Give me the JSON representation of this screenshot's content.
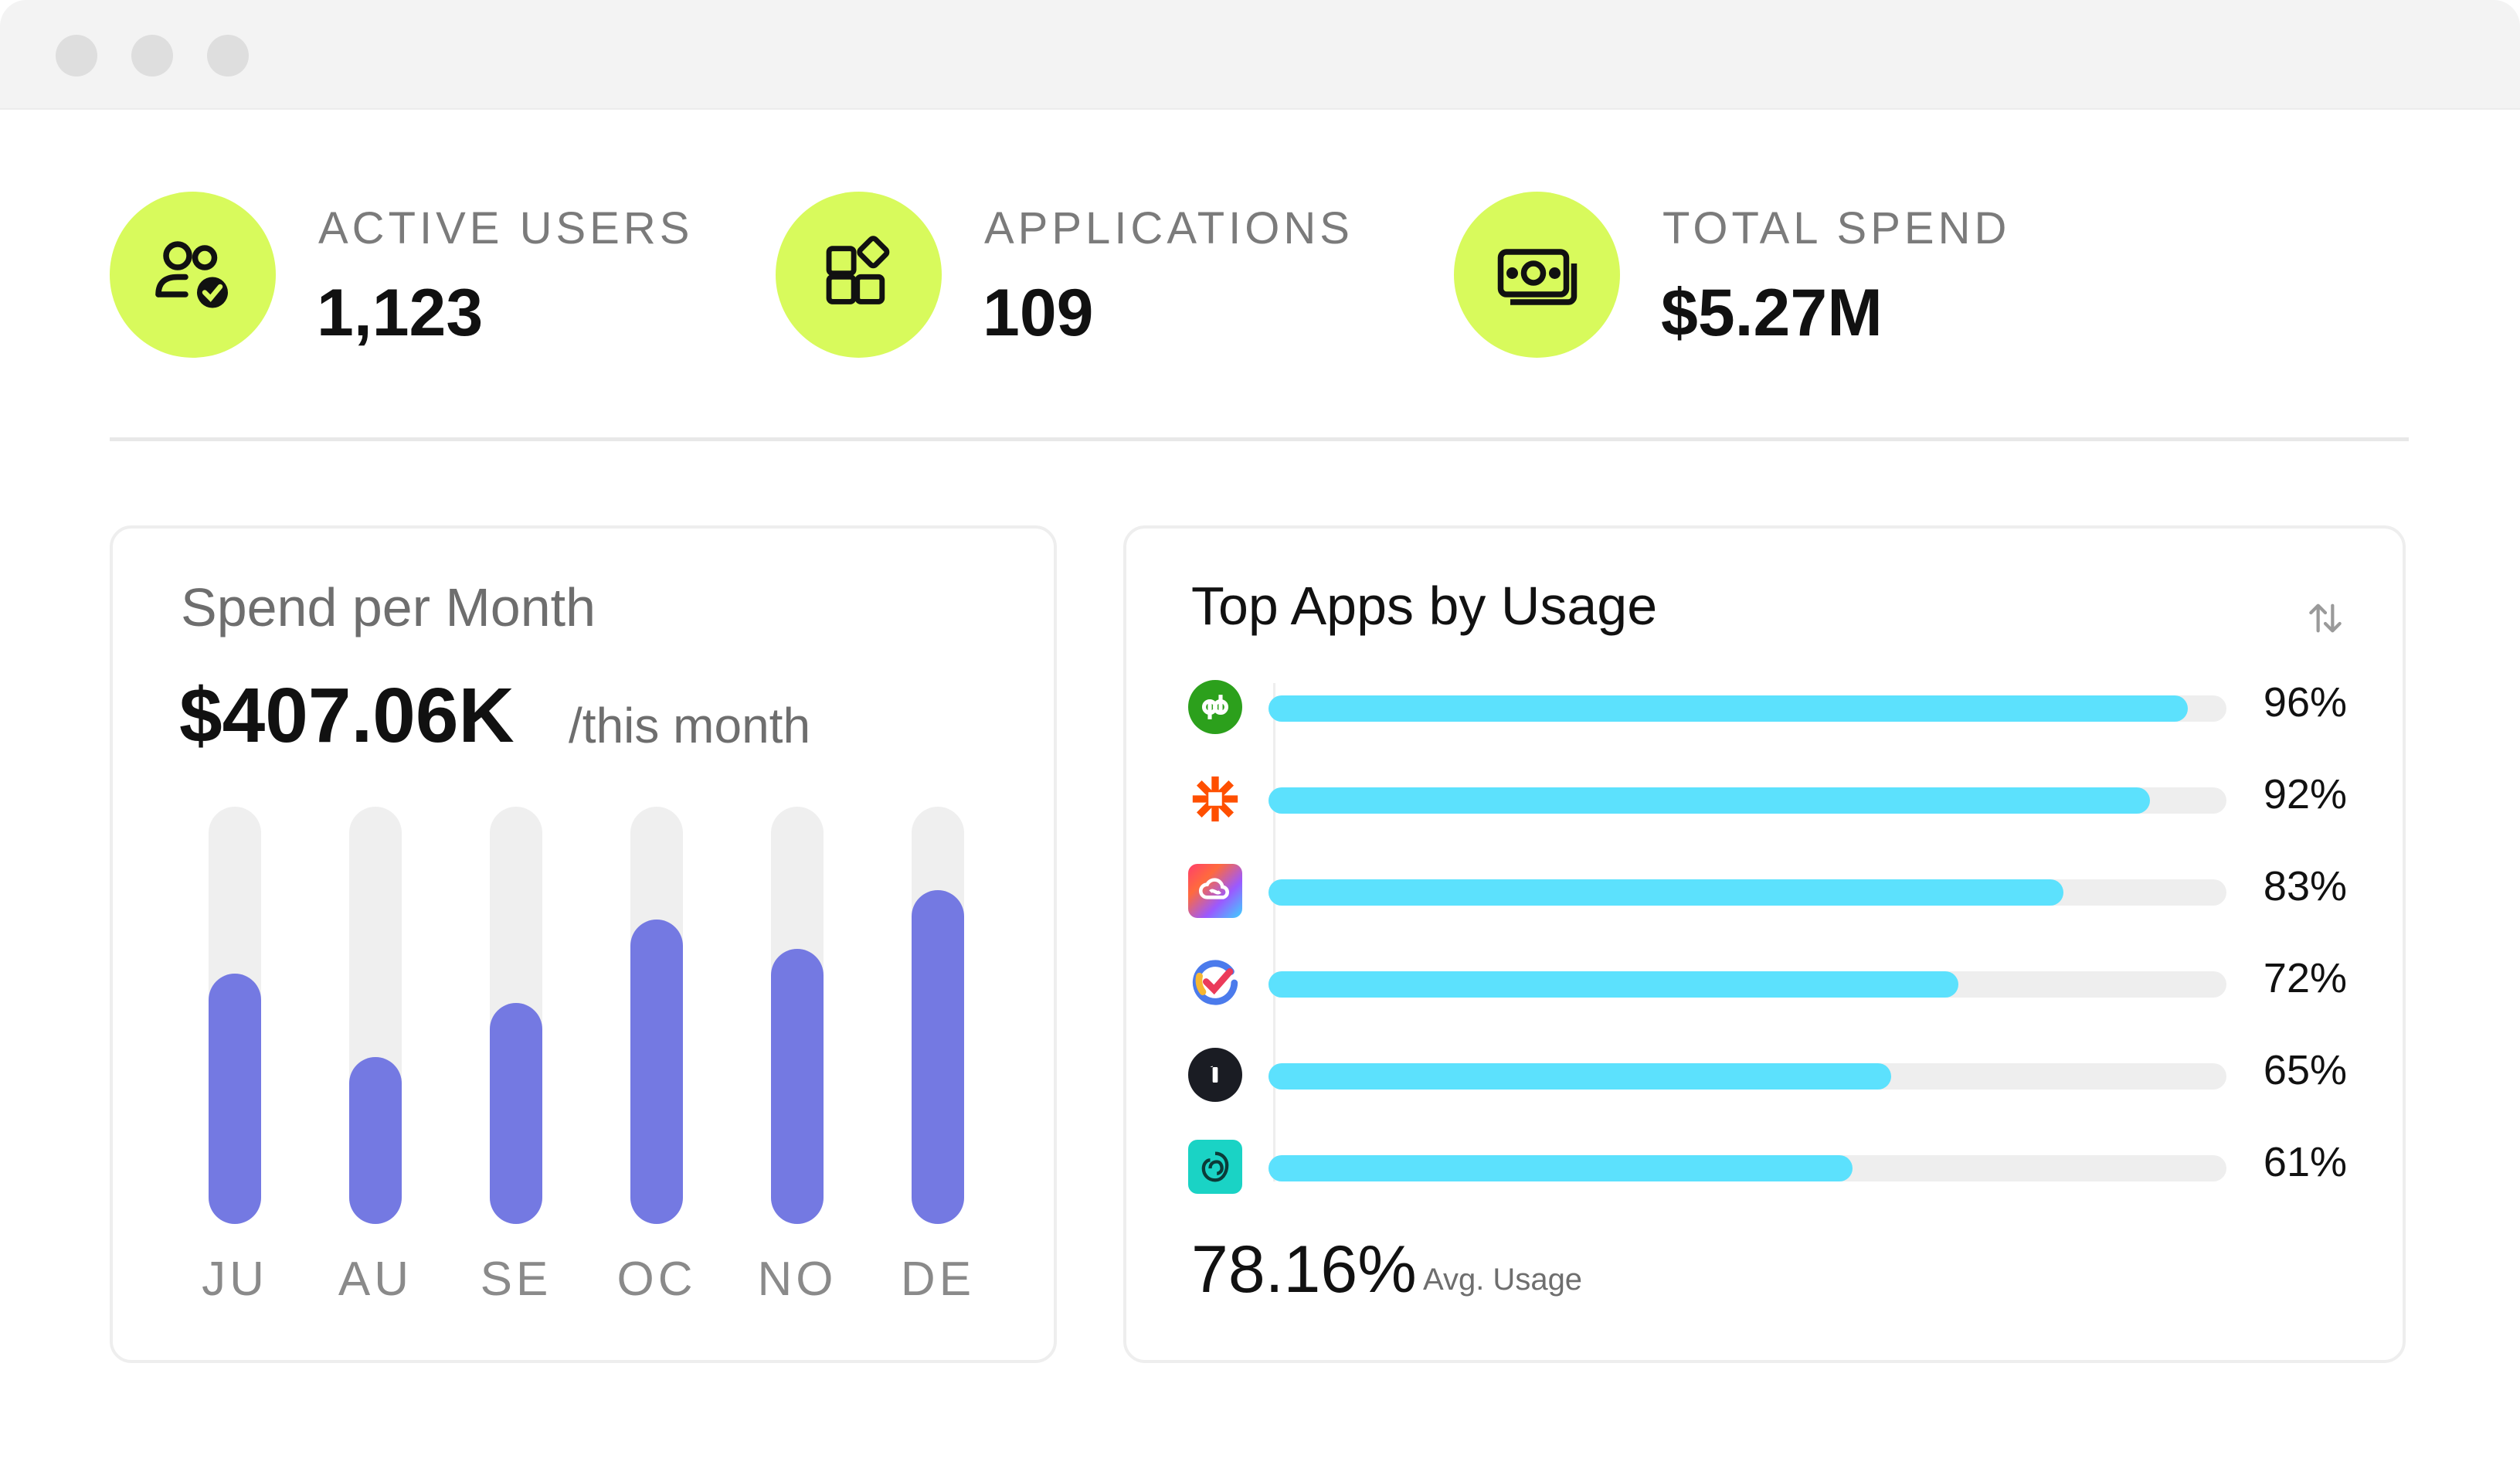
{
  "colors": {
    "accent_lime": "#d8fa5c",
    "bar_purple": "#7479e2",
    "usage_cyan": "#5ce1fd",
    "track_gray": "#efefef"
  },
  "stats": [
    {
      "label": "ACTIVE USERS",
      "value": "1,123",
      "icon": "users-check-icon"
    },
    {
      "label": "APPLICATIONS",
      "value": "109",
      "icon": "apps-grid-icon"
    },
    {
      "label": "TOTAL SPEND",
      "value": "$5.27M",
      "icon": "money-icon"
    }
  ],
  "spend_card": {
    "title": "Spend per Month",
    "value": "$407.06K",
    "suffix": "/this month"
  },
  "chart_data": {
    "type": "bar",
    "title": "Spend per Month",
    "categories": [
      "JU",
      "AU",
      "SE",
      "OC",
      "NO",
      "DE"
    ],
    "values": [
      60,
      40,
      53,
      73,
      66,
      80
    ],
    "ylim": [
      0,
      100
    ],
    "xlabel": "",
    "ylabel": "",
    "grid": false
  },
  "apps_card": {
    "title": "Top Apps by Usage",
    "sort_icon": "sort-arrows-icon",
    "apps": [
      {
        "icon": "quickbooks-logo-icon",
        "percent": "96%",
        "usage": 96
      },
      {
        "icon": "zapier-logo-icon",
        "percent": "92%",
        "usage": 92
      },
      {
        "icon": "creative-cloud-logo-icon",
        "percent": "83%",
        "usage": 83
      },
      {
        "icon": "todoist-check-logo-icon",
        "percent": "72%",
        "usage": 72
      },
      {
        "icon": "onepassword-logo-icon",
        "percent": "65%",
        "usage": 65
      },
      {
        "icon": "evernote-logo-icon",
        "percent": "61%",
        "usage": 61
      }
    ],
    "avg_value": "78.16%",
    "avg_label": "Avg. Usage"
  }
}
